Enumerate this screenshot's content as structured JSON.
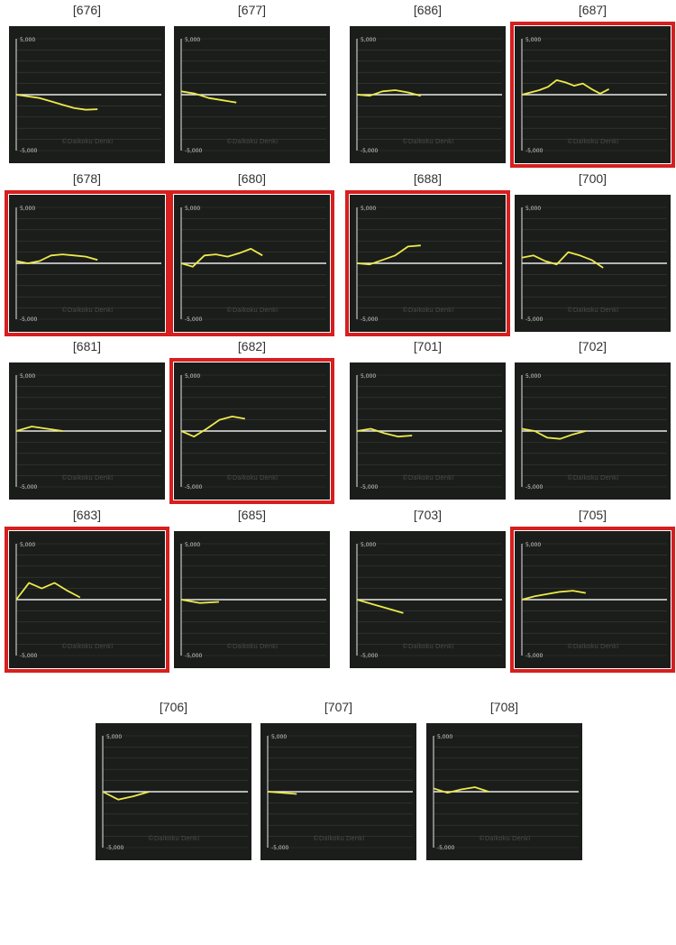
{
  "style": {
    "highlight_color": "#d61f1f",
    "line_color": "#ecea4a",
    "panel_bg": "#1b1d1b",
    "zero_line_color": "#e8e8e8",
    "grid_color": "#3a3d3a"
  },
  "common": {
    "y_top_label": "5,000",
    "y_bottom_label": "-5,000",
    "watermark": "©Daikoku Denki"
  },
  "chart_data": [
    {
      "type": "line",
      "machine": "[676]",
      "highlighted": false,
      "ylim": [
        -5000,
        5000
      ],
      "values": [
        0,
        -150,
        -300,
        -600,
        -900,
        -1200,
        -1350,
        -1300
      ]
    },
    {
      "type": "line",
      "machine": "[677]",
      "highlighted": false,
      "ylim": [
        -5000,
        5000
      ],
      "values": [
        300,
        100,
        -300,
        -500,
        -700
      ]
    },
    {
      "type": "line",
      "machine": "[686]",
      "highlighted": false,
      "ylim": [
        -5000,
        5000
      ],
      "values": [
        0,
        -100,
        300,
        400,
        200,
        -100
      ]
    },
    {
      "type": "line",
      "machine": "[687]",
      "highlighted": true,
      "ylim": [
        -5000,
        5000
      ],
      "values": [
        0,
        200,
        400,
        700,
        1300,
        1100,
        800,
        1000,
        500,
        100,
        500
      ]
    },
    {
      "type": "line",
      "machine": "[678]",
      "highlighted": true,
      "ylim": [
        -5000,
        5000
      ],
      "values": [
        200,
        0,
        200,
        700,
        800,
        700,
        600,
        300
      ]
    },
    {
      "type": "line",
      "machine": "[680]",
      "highlighted": true,
      "ylim": [
        -5000,
        5000
      ],
      "values": [
        0,
        -300,
        700,
        800,
        600,
        900,
        1300,
        700
      ]
    },
    {
      "type": "line",
      "machine": "[688]",
      "highlighted": true,
      "ylim": [
        -5000,
        5000
      ],
      "values": [
        0,
        -100,
        300,
        700,
        1500,
        1600
      ]
    },
    {
      "type": "line",
      "machine": "[700]",
      "highlighted": false,
      "ylim": [
        -5000,
        5000
      ],
      "values": [
        500,
        700,
        200,
        -100,
        1000,
        700,
        300,
        -400
      ]
    },
    {
      "type": "line",
      "machine": "[681]",
      "highlighted": false,
      "ylim": [
        -5000,
        5000
      ],
      "values": [
        0,
        400,
        200,
        0
      ]
    },
    {
      "type": "line",
      "machine": "[682]",
      "highlighted": true,
      "ylim": [
        -5000,
        5000
      ],
      "values": [
        0,
        -500,
        200,
        1000,
        1300,
        1100
      ]
    },
    {
      "type": "line",
      "machine": "[701]",
      "highlighted": false,
      "ylim": [
        -5000,
        5000
      ],
      "values": [
        0,
        200,
        -200,
        -500,
        -400
      ]
    },
    {
      "type": "line",
      "machine": "[702]",
      "highlighted": false,
      "ylim": [
        -5000,
        5000
      ],
      "values": [
        200,
        0,
        -600,
        -700,
        -300,
        0
      ]
    },
    {
      "type": "line",
      "machine": "[683]",
      "highlighted": true,
      "ylim": [
        -5000,
        5000
      ],
      "values": [
        0,
        1500,
        1000,
        1500,
        800,
        200
      ]
    },
    {
      "type": "line",
      "machine": "[685]",
      "highlighted": false,
      "ylim": [
        -5000,
        5000
      ],
      "values": [
        0,
        -300,
        -200
      ]
    },
    {
      "type": "line",
      "machine": "[703]",
      "highlighted": false,
      "ylim": [
        -5000,
        5000
      ],
      "values": [
        0,
        -400,
        -800,
        -1200
      ]
    },
    {
      "type": "line",
      "machine": "[705]",
      "highlighted": true,
      "ylim": [
        -5000,
        5000
      ],
      "values": [
        0,
        300,
        500,
        700,
        800,
        600
      ]
    },
    {
      "type": "line",
      "machine": "[706]",
      "highlighted": false,
      "ylim": [
        -5000,
        5000
      ],
      "values": [
        0,
        -700,
        -400,
        0
      ]
    },
    {
      "type": "line",
      "machine": "[707]",
      "highlighted": false,
      "ylim": [
        -5000,
        5000
      ],
      "values": [
        0,
        -200
      ]
    },
    {
      "type": "line",
      "machine": "[708]",
      "highlighted": false,
      "ylim": [
        -5000,
        5000
      ],
      "values": [
        300,
        -100,
        200,
        400,
        0
      ]
    }
  ]
}
